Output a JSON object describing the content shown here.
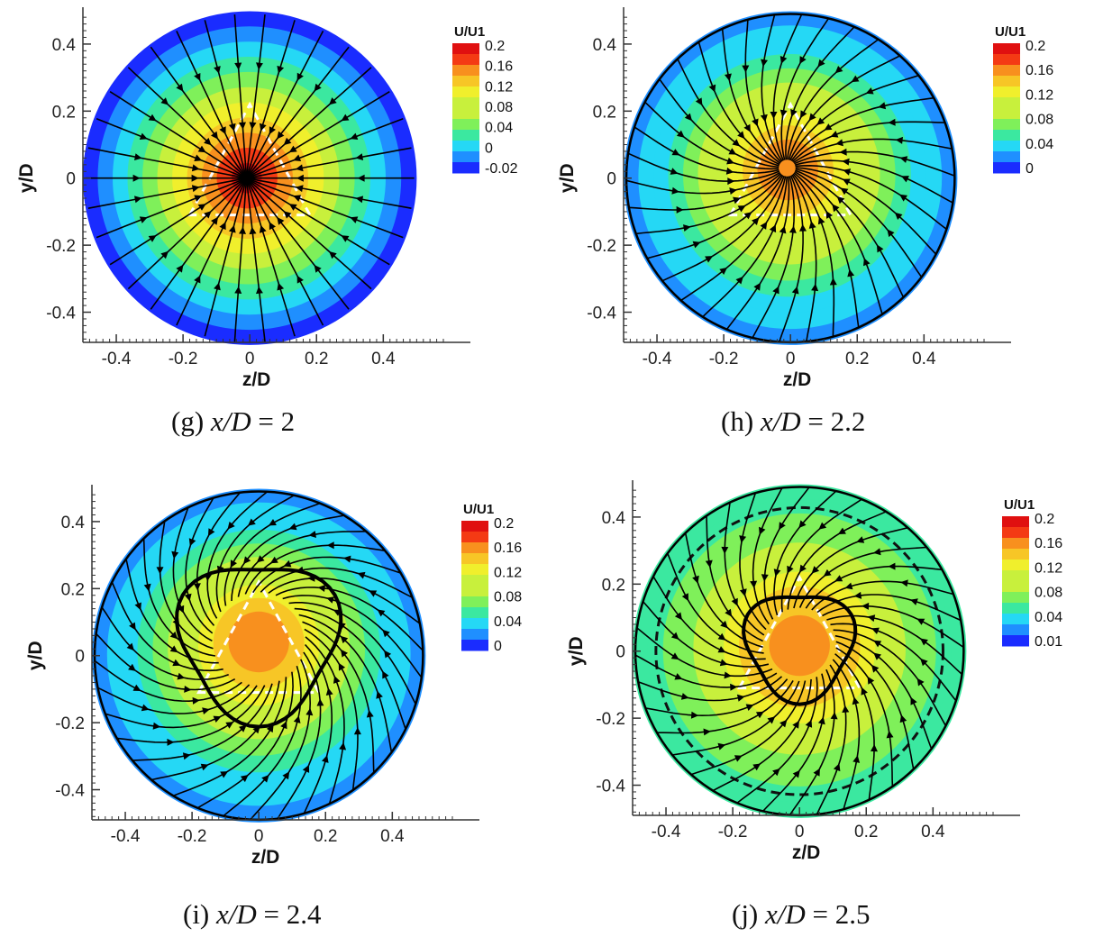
{
  "chart_data": [
    {
      "type": "heatmap",
      "caption": {
        "prefix": "(g) ",
        "variable": "x/D",
        "suffix": " = 2"
      },
      "xlabel": "z/D",
      "ylabel": "y/D",
      "xticks": [
        "-0.4",
        "-0.2",
        "0",
        "0.2",
        "0.4"
      ],
      "yticks": [
        "0.4",
        "0.2",
        "0",
        "-0.2",
        "-0.4"
      ],
      "xlim": [
        -0.5,
        0.58
      ],
      "ylim": [
        -0.49,
        0.51
      ],
      "legend": {
        "title": "U/U1",
        "levels": [
          "0.2",
          "0.16",
          "0.12",
          "0.08",
          "0.04",
          "0",
          "-0.02"
        ]
      },
      "center_value": 0.2,
      "wall_value": -0.02,
      "center": [
        -0.01,
        0.0
      ],
      "vortex": "none",
      "dashed_ring": false
    },
    {
      "type": "heatmap",
      "caption": {
        "prefix": "(h) ",
        "variable": "x/D",
        "suffix": " = 2.2"
      },
      "xlabel": "z/D",
      "ylabel": "y/D",
      "xticks": [
        "-0.4",
        "-0.2",
        "0",
        "0.2",
        "0.4"
      ],
      "yticks": [
        "0.4",
        "0.2",
        "0",
        "-0.2",
        "-0.4"
      ],
      "xlim": [
        -0.5,
        0.58
      ],
      "ylim": [
        -0.49,
        0.51
      ],
      "legend": {
        "title": "U/U1",
        "levels": [
          "0.2",
          "0.16",
          "0.12",
          "0.08",
          "0.04",
          "0"
        ]
      },
      "center_value": 0.17,
      "wall_value": 0.0,
      "center": [
        -0.01,
        0.03
      ],
      "vortex": "swirl",
      "dashed_ring": false
    },
    {
      "type": "heatmap",
      "caption": {
        "prefix": "(i) ",
        "variable": "x/D",
        "suffix": " = 2.4"
      },
      "xlabel": "z/D",
      "ylabel": "y/D",
      "xticks": [
        "-0.4",
        "-0.2",
        "0",
        "0.2",
        "0.4"
      ],
      "yticks": [
        "0.4",
        "0.2",
        "0",
        "-0.2",
        "-0.4"
      ],
      "xlim": [
        -0.5,
        0.58
      ],
      "ylim": [
        -0.49,
        0.51
      ],
      "legend": {
        "title": "U/U1",
        "levels": [
          "0.2",
          "0.16",
          "0.12",
          "0.08",
          "0.04",
          "0"
        ]
      },
      "center_value": 0.17,
      "wall_value": 0.0,
      "center": [
        0.0,
        0.05
      ],
      "vortex": "loop",
      "dashed_ring": false
    },
    {
      "type": "heatmap",
      "caption": {
        "prefix": "(j) ",
        "variable": "x/D",
        "suffix": " = 2.5"
      },
      "xlabel": "z/D",
      "ylabel": "y/D",
      "xticks": [
        "-0.4",
        "-0.2",
        "0",
        "0.2",
        "0.4"
      ],
      "yticks": [
        "0.4",
        "0.2",
        "0",
        "-0.2",
        "-0.4"
      ],
      "xlim": [
        -0.5,
        0.58
      ],
      "ylim": [
        -0.49,
        0.51
      ],
      "legend": {
        "title": "U/U1",
        "levels": [
          "0.2",
          "0.16",
          "0.12",
          "0.08",
          "0.04",
          "0.01"
        ]
      },
      "center_value": 0.17,
      "wall_value": 0.04,
      "center": [
        0.0,
        0.02
      ],
      "vortex": "spiral",
      "dashed_ring": true
    }
  ],
  "colors": {
    "scale": [
      "#1a2cff",
      "#1f8fff",
      "#25d8f5",
      "#3be8a0",
      "#7ff05a",
      "#c8f03c",
      "#f0ef2c",
      "#f7c626",
      "#f8901e",
      "#f43a14",
      "#e01010"
    ],
    "streamline": "#000000",
    "triangle_outline": "#ffffff"
  }
}
